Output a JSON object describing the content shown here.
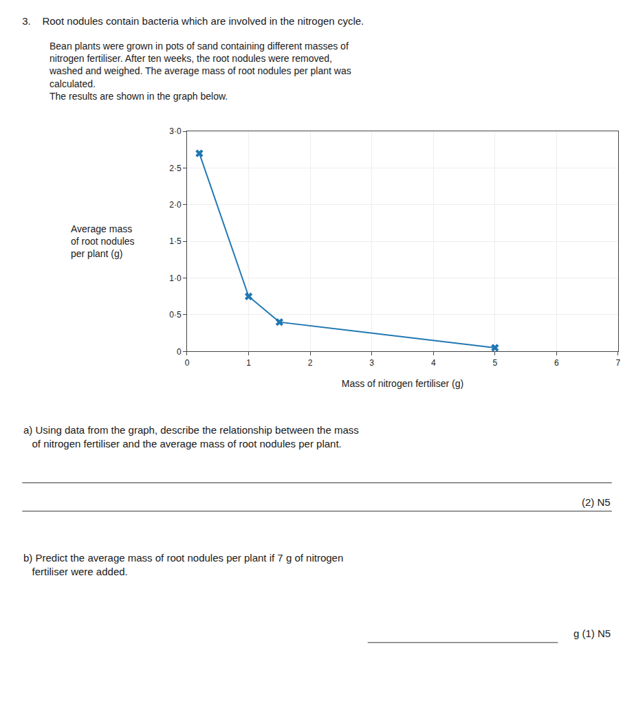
{
  "chart_data": {
    "type": "line",
    "title": "3.    Root nodules contain bacteria which are involved in the nitrogen cycle.",
    "subtitle": "Bean plants were grown in pots of sand containing different masses of\nnitrogen fertiliser. After ten weeks, the root nodules were removed,\nwashed and weighed. The average mass of root nodules per plant was\ncalculated.\nThe results are shown in the graph below.",
    "xlabel": "Mass of nitrogen fertiliser (g)",
    "ylabel": "Average mass\nof root nodules\nper plant (g)",
    "x": [
      0.2,
      1.0,
      1.5,
      5.0
    ],
    "values": [
      2.7,
      0.75,
      0.4,
      0.05
    ],
    "marker": "x",
    "line_style": "solid",
    "xlim": [
      0,
      7
    ],
    "ylim": [
      0,
      3.0
    ],
    "xticks": [
      0,
      1,
      2,
      3,
      4,
      5,
      6,
      7
    ],
    "yticks": [
      0,
      {
        "value": 0.5,
        "label": "0·5"
      },
      {
        "value": 1.0,
        "label": "1·0"
      },
      {
        "value": 1.5,
        "label": "1·5"
      },
      {
        "value": 2.0,
        "label": "2·0"
      },
      {
        "value": 2.5,
        "label": "2·5"
      },
      {
        "value": 3.0,
        "label": "3·0"
      }
    ],
    "grid": true,
    "annotations": [
      "a) Using data from the graph, describe the relationship between the mass\n   of nitrogen fertiliser and the average mass of root nodules per plant.",
      "(2) N5",
      "b) Predict the average mass of root nodules per plant if 7 g of nitrogen\n   fertiliser were added.",
      "g (1) N5"
    ]
  }
}
